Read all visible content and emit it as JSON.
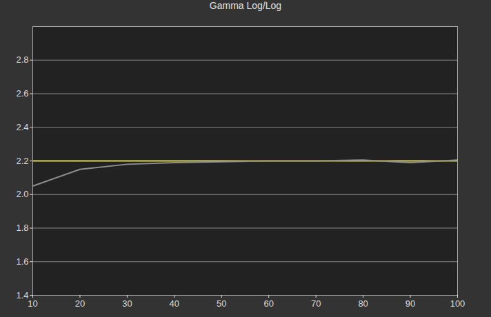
{
  "chart_data": {
    "type": "line",
    "title": "Gamma Log/Log",
    "x": [
      10,
      20,
      30,
      40,
      50,
      60,
      70,
      80,
      90,
      100
    ],
    "series": [
      {
        "color": "#d8d84a",
        "values": [
          2.2,
          2.2,
          2.2,
          2.2,
          2.2,
          2.2,
          2.2,
          2.2,
          2.2,
          2.2
        ]
      },
      {
        "color": "#8e8e8e",
        "values": [
          2.05,
          2.15,
          2.18,
          2.19,
          2.195,
          2.2,
          2.2,
          2.205,
          2.19,
          2.205
        ]
      }
    ],
    "xlim": [
      10,
      100
    ],
    "xticks": [
      10,
      20,
      30,
      40,
      50,
      60,
      70,
      80,
      90,
      100
    ],
    "ylim": [
      1.4,
      3.0
    ],
    "yticks": [
      1.4,
      1.6,
      1.8,
      2,
      2.2,
      2.4,
      2.6,
      2.8
    ],
    "grid": "y",
    "marker": "none",
    "line_style": "solid"
  }
}
